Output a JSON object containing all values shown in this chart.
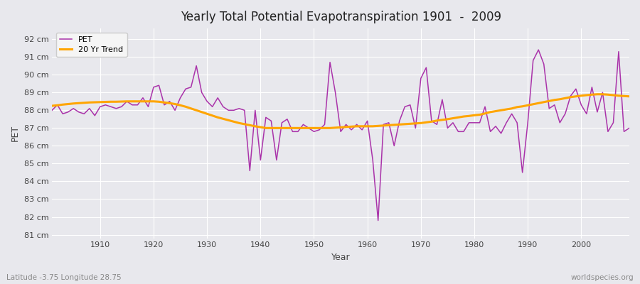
{
  "title": "Yearly Total Potential Evapotranspiration 1901  -  2009",
  "xlabel": "Year",
  "ylabel": "PET",
  "subtitle_left": "Latitude -3.75 Longitude 28.75",
  "subtitle_right": "worldspecies.org",
  "ylim": [
    80.8,
    92.6
  ],
  "yticks": [
    81,
    82,
    83,
    84,
    85,
    86,
    87,
    88,
    89,
    90,
    91,
    92
  ],
  "ytick_labels": [
    "81 cm",
    "82 cm",
    "83 cm",
    "84 cm",
    "85 cm",
    "86 cm",
    "87 cm",
    "88 cm",
    "89 cm",
    "90 cm",
    "91 cm",
    "92 cm"
  ],
  "pet_color": "#aa33aa",
  "trend_color": "#FFA500",
  "bg_color": "#e8e8ed",
  "plot_bg_color": "#e8e8ed",
  "legend_bg": "#f5f5f5",
  "years": [
    1901,
    1902,
    1903,
    1904,
    1905,
    1906,
    1907,
    1908,
    1909,
    1910,
    1911,
    1912,
    1913,
    1914,
    1915,
    1916,
    1917,
    1918,
    1919,
    1920,
    1921,
    1922,
    1923,
    1924,
    1925,
    1926,
    1927,
    1928,
    1929,
    1930,
    1931,
    1932,
    1933,
    1934,
    1935,
    1936,
    1937,
    1938,
    1939,
    1940,
    1941,
    1942,
    1943,
    1944,
    1945,
    1946,
    1947,
    1948,
    1949,
    1950,
    1951,
    1952,
    1953,
    1954,
    1955,
    1956,
    1957,
    1958,
    1959,
    1960,
    1961,
    1962,
    1963,
    1964,
    1965,
    1966,
    1967,
    1968,
    1969,
    1970,
    1971,
    1972,
    1973,
    1974,
    1975,
    1976,
    1977,
    1978,
    1979,
    1980,
    1981,
    1982,
    1983,
    1984,
    1985,
    1986,
    1987,
    1988,
    1989,
    1990,
    1991,
    1992,
    1993,
    1994,
    1995,
    1996,
    1997,
    1998,
    1999,
    2000,
    2001,
    2002,
    2003,
    2004,
    2005,
    2006,
    2007,
    2008,
    2009
  ],
  "pet_values": [
    88.0,
    88.3,
    87.8,
    87.9,
    88.1,
    87.9,
    87.8,
    88.1,
    87.7,
    88.2,
    88.3,
    88.2,
    88.1,
    88.2,
    88.5,
    88.3,
    88.3,
    88.7,
    88.2,
    89.3,
    89.4,
    88.3,
    88.5,
    88.0,
    88.7,
    89.2,
    89.3,
    90.5,
    89.0,
    88.5,
    88.2,
    88.7,
    88.2,
    88.0,
    88.0,
    88.1,
    88.0,
    84.6,
    88.0,
    85.2,
    87.6,
    87.4,
    85.2,
    87.3,
    87.5,
    86.8,
    86.8,
    87.2,
    87.0,
    86.8,
    86.9,
    87.2,
    90.7,
    89.0,
    86.8,
    87.2,
    86.9,
    87.2,
    86.9,
    87.4,
    85.2,
    81.8,
    87.2,
    87.3,
    86.0,
    87.4,
    88.2,
    88.3,
    87.0,
    89.8,
    90.4,
    87.4,
    87.2,
    88.6,
    87.0,
    87.3,
    86.8,
    86.8,
    87.3,
    87.3,
    87.3,
    88.2,
    86.8,
    87.1,
    86.7,
    87.3,
    87.8,
    87.3,
    84.5,
    87.3,
    90.8,
    91.4,
    90.6,
    88.1,
    88.3,
    87.3,
    87.8,
    88.8,
    89.2,
    88.3,
    87.8,
    89.3,
    87.9,
    89.0,
    86.8,
    87.3,
    91.3,
    86.8,
    87.0
  ],
  "trend_years": [
    1901,
    1902,
    1903,
    1904,
    1905,
    1906,
    1907,
    1908,
    1909,
    1910,
    1911,
    1912,
    1913,
    1914,
    1915,
    1916,
    1917,
    1918,
    1919,
    1920,
    1921,
    1922,
    1923,
    1924,
    1925,
    1926,
    1927,
    1928,
    1929,
    1930,
    1931,
    1932,
    1933,
    1934,
    1935,
    1936,
    1937,
    1938,
    1939,
    1940,
    1941,
    1942,
    1943,
    1944,
    1945,
    1946,
    1947,
    1948,
    1949,
    1950,
    1951,
    1952,
    1953,
    1954,
    1955,
    1956,
    1957,
    1958,
    1959,
    1960,
    1961,
    1962,
    1963,
    1964,
    1965,
    1966,
    1967,
    1968,
    1969,
    1970,
    1971,
    1972,
    1973,
    1974,
    1975,
    1976,
    1977,
    1978,
    1979,
    1980,
    1981,
    1982,
    1983,
    1984,
    1985,
    1986,
    1987,
    1988,
    1989,
    1990,
    1991,
    1992,
    1993,
    1994,
    1995,
    1996,
    1997,
    1998,
    1999,
    2000,
    2001,
    2002,
    2003,
    2004,
    2005,
    2006,
    2007,
    2008,
    2009
  ],
  "trend_values": [
    88.25,
    88.28,
    88.32,
    88.35,
    88.38,
    88.4,
    88.42,
    88.44,
    88.45,
    88.46,
    88.47,
    88.48,
    88.48,
    88.49,
    88.5,
    88.5,
    88.5,
    88.5,
    88.5,
    88.5,
    88.48,
    88.44,
    88.4,
    88.35,
    88.28,
    88.2,
    88.1,
    88.0,
    87.9,
    87.8,
    87.7,
    87.6,
    87.52,
    87.44,
    87.36,
    87.28,
    87.22,
    87.16,
    87.1,
    87.05,
    87.0,
    87.0,
    87.0,
    87.0,
    87.0,
    87.0,
    87.0,
    87.0,
    87.0,
    87.0,
    87.0,
    87.0,
    87.0,
    87.02,
    87.04,
    87.06,
    87.08,
    87.1,
    87.1,
    87.1,
    87.1,
    87.12,
    87.14,
    87.16,
    87.18,
    87.2,
    87.22,
    87.24,
    87.26,
    87.28,
    87.32,
    87.36,
    87.42,
    87.46,
    87.5,
    87.55,
    87.6,
    87.65,
    87.68,
    87.72,
    87.75,
    87.82,
    87.9,
    87.95,
    88.0,
    88.05,
    88.1,
    88.18,
    88.22,
    88.28,
    88.34,
    88.4,
    88.46,
    88.52,
    88.58,
    88.62,
    88.68,
    88.74,
    88.78,
    88.82,
    88.85,
    88.88,
    88.9,
    88.9,
    88.88,
    88.85,
    88.82,
    88.8,
    88.78
  ]
}
